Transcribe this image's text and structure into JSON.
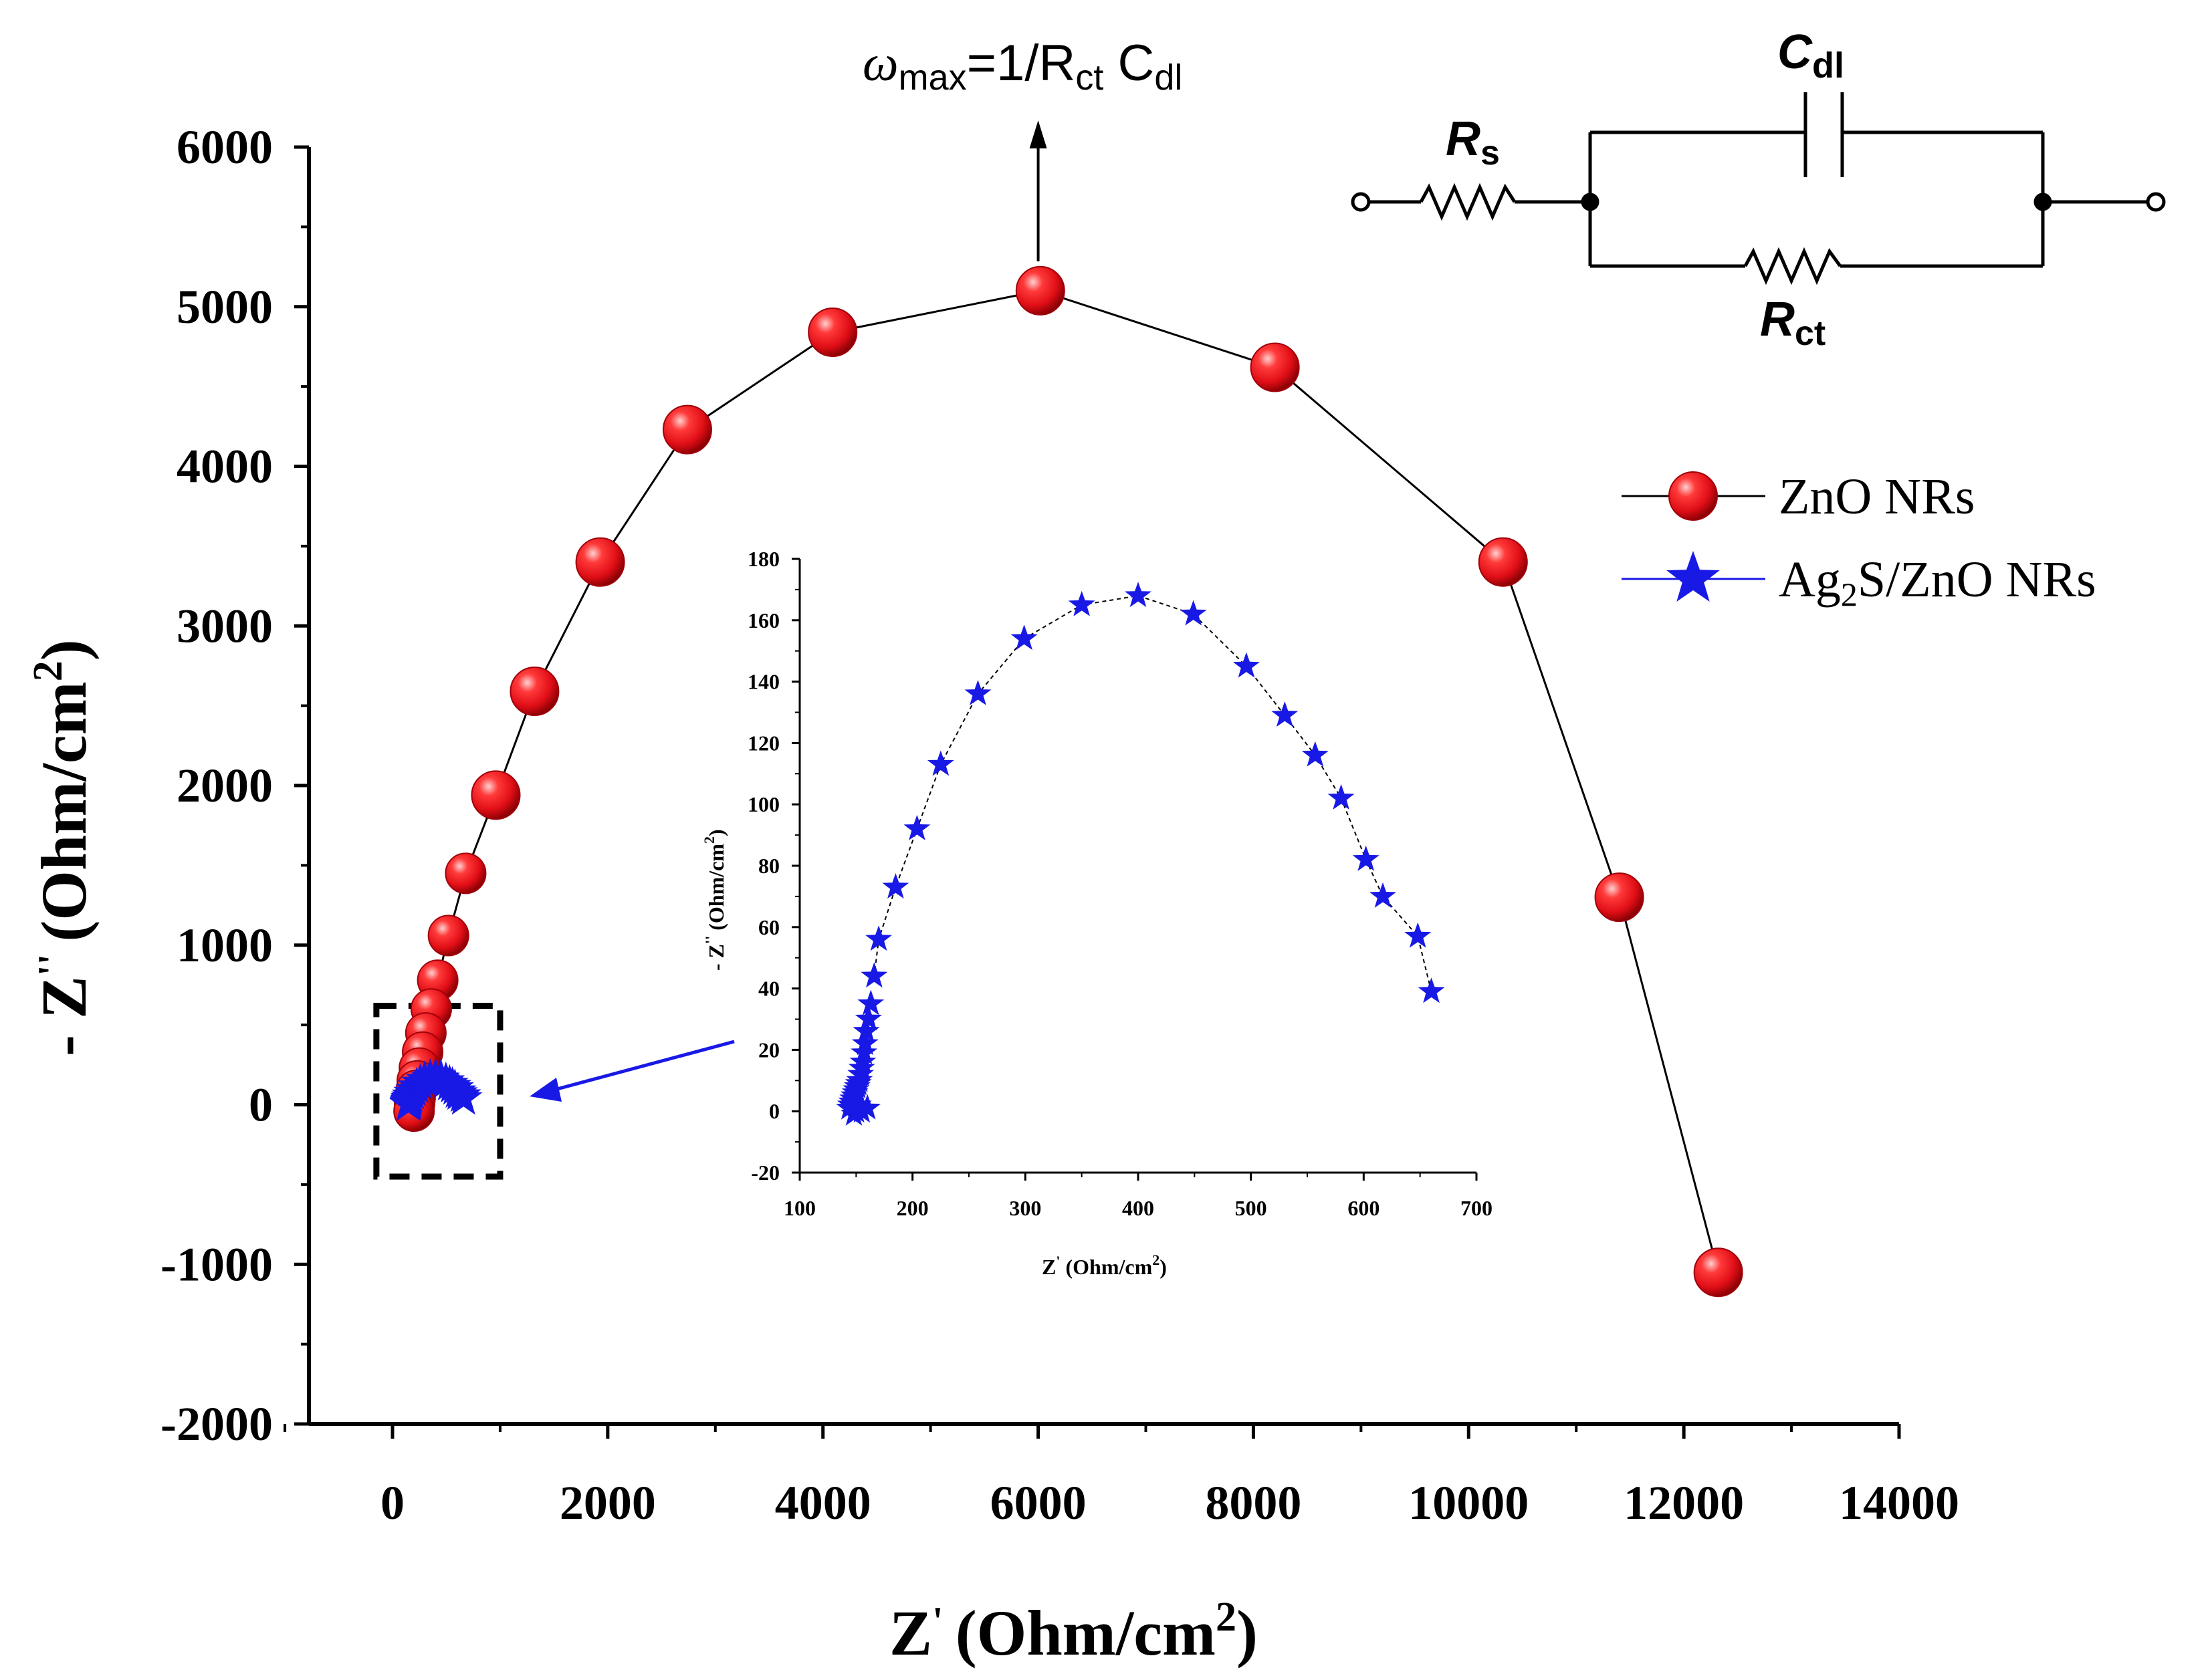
{
  "chart_data": {
    "type": "scatter",
    "main": {
      "xlabel": "Z' (Ohm/cm2)",
      "xlabel_parts": {
        "base": "Z",
        "prime": "'",
        "unit": "(Ohm/cm",
        "sup": "2",
        "close": ")"
      },
      "ylabel": "- Z'' (Ohm/cm2)",
      "ylabel_parts": {
        "base": "- Z",
        "prime": "''",
        "unit": "(Ohm/cm",
        "sup": "2",
        "close": ")"
      },
      "xlim": [
        -1000,
        14000
      ],
      "ylim": [
        -2000,
        6000
      ],
      "xticks": [
        "0",
        "2000",
        "4000",
        "6000",
        "8000",
        "10000",
        "12000",
        "14000"
      ],
      "xtick_values": [
        0,
        2000,
        4000,
        6000,
        8000,
        10000,
        12000,
        14000
      ],
      "yticks": [
        "-2000",
        "-1000",
        "0",
        "1000",
        "2000",
        "3000",
        "4000",
        "5000",
        "6000"
      ],
      "ytick_values": [
        -2000,
        -1000,
        0,
        1000,
        2000,
        3000,
        4000,
        5000,
        6000
      ],
      "series": [
        {
          "name": "ZnO NRs",
          "color": "#e8141b",
          "marker": "sphere",
          "x": [
            12320,
            11400,
            10320,
            8200,
            6020,
            4090,
            2740,
            1930,
            1320,
            960,
            680,
            520,
            420,
            360,
            310,
            280,
            250,
            230,
            220,
            210,
            205,
            200
          ],
          "y": [
            -1050,
            1300,
            3400,
            4620,
            5100,
            4840,
            4230,
            3400,
            2590,
            1940,
            1450,
            1060,
            780,
            600,
            450,
            330,
            230,
            150,
            90,
            40,
            10,
            -40
          ]
        },
        {
          "name": "Ag2S/ZnO NRs",
          "color": "#1919e6",
          "marker": "star",
          "x": [
            660,
            648,
            617,
            602,
            580,
            557,
            530,
            496,
            449,
            400,
            350,
            299,
            258,
            225,
            204,
            185,
            170,
            165,
            160,
            158,
            156,
            154,
            152,
            151,
            150,
            149,
            148
          ],
          "y": [
            39,
            57,
            70,
            82,
            102,
            116,
            129,
            145,
            162,
            168,
            165,
            154,
            136,
            113,
            92,
            73,
            56,
            44,
            35,
            28,
            22,
            16,
            12,
            8,
            5,
            3,
            1
          ]
        }
      ],
      "legend": [
        {
          "label_base": "ZnO NRs",
          "label": "ZnO NRs"
        },
        {
          "label_pre": "Ag",
          "label_sub": "2",
          "label_post": "S/ZnO NRs",
          "label": "Ag2S/ZnO NRs"
        }
      ],
      "zoom_box_x": [
        -150,
        1000
      ],
      "zoom_box_y": [
        -450,
        620
      ]
    },
    "inset": {
      "xlabel": "Z' (Ohm/cm2)",
      "xlabel_parts": {
        "base": "Z",
        "prime": "'",
        "unit": "(Ohm/cm",
        "sup": "2",
        "close": ")"
      },
      "ylabel": "- Z'' (Ohm/cm2)",
      "ylabel_parts": {
        "base": "- Z",
        "prime": "''",
        "unit": "(Ohm/cm",
        "sup": "2",
        "close": ")"
      },
      "xlim": [
        100,
        700
      ],
      "ylim": [
        -20,
        180
      ],
      "xticks": [
        "100",
        "200",
        "300",
        "400",
        "500",
        "600",
        "700"
      ],
      "xtick_values": [
        100,
        200,
        300,
        400,
        500,
        600,
        700
      ],
      "yticks": [
        "-20",
        "0",
        "20",
        "40",
        "60",
        "80",
        "100",
        "120",
        "140",
        "160",
        "180"
      ],
      "ytick_values": [
        -20,
        0,
        20,
        40,
        60,
        80,
        100,
        120,
        140,
        160,
        180
      ],
      "series": [
        {
          "name": "Ag2S/ZnO NRs",
          "color": "#1919e6",
          "marker": "star",
          "x": [
            660,
            648,
            617,
            602,
            580,
            557,
            530,
            496,
            449,
            400,
            350,
            299,
            258,
            225,
            204,
            185,
            170,
            166,
            163,
            161,
            159,
            158,
            157,
            156,
            155,
            154,
            153,
            152,
            151,
            150,
            149,
            148,
            147,
            146,
            145,
            144,
            150,
            155,
            160,
            148,
            152
          ],
          "y": [
            39,
            57,
            70,
            82,
            102,
            116,
            129,
            145,
            162,
            168,
            165,
            154,
            136,
            113,
            92,
            73,
            56,
            44,
            35,
            30,
            26,
            22,
            19,
            16,
            14,
            12,
            10,
            9,
            8,
            7,
            6,
            5,
            4,
            3,
            2,
            1,
            0,
            0,
            1,
            -1,
            2
          ]
        }
      ]
    },
    "annotation": {
      "omega": "ω",
      "max": "max",
      "eq": "=1/R",
      "ct": "ct",
      "space": " C",
      "dl": "dl",
      "full": "ωmax=1/Rct Cdl",
      "arrow_x": 6000,
      "arrow_from_y": 5100
    },
    "circuit": {
      "rs_base": "R",
      "rs_sub": "s",
      "cdl_base": "C",
      "cdl_sub": "dl",
      "rct_base": "R",
      "rct_sub": "ct"
    }
  },
  "colors": {
    "red": "#e8141b",
    "blue": "#1919e6",
    "black": "#000000"
  }
}
